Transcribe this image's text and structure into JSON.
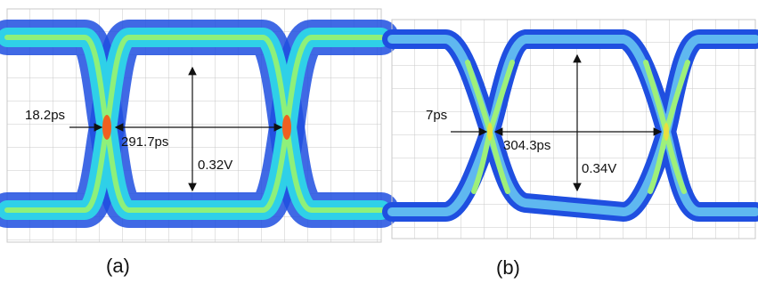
{
  "panels": [
    {
      "label": "(a)",
      "jitter": "18.2ps",
      "eye_width": "291.7ps",
      "eye_height": "0.32V"
    },
    {
      "label": "(b)",
      "jitter": "7ps",
      "eye_width": "304.3ps",
      "eye_height": "0.34V"
    }
  ]
}
